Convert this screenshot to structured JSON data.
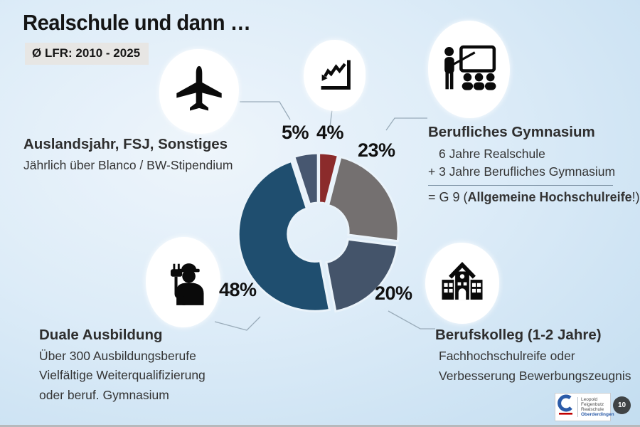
{
  "slide": {
    "title": "Realschule und dann …",
    "badge": "Ø LFR: 2010 - 2025",
    "page_number": "10"
  },
  "sections": {
    "ausland": {
      "heading": "Auslandsjahr, FSJ, Sonstiges",
      "line1": "Jährlich über Blanco / BW-Stipendium"
    },
    "gymnasium": {
      "heading": "Berufliches Gymnasium",
      "line1": "6 Jahre Realschule",
      "line2": "+ 3 Jahre Berufliches Gymnasium",
      "g9_prefix": "= G 9 (",
      "g9_bold": "Allgemeine Hochschulreife",
      "g9_suffix": "!)"
    },
    "duale": {
      "heading": "Duale Ausbildung",
      "line1": "Über 300 Ausbildungsberufe",
      "line2": "Vielfältige Weiterqualifizierung",
      "line3": "oder beruf. Gymnasium"
    },
    "berufskolleg": {
      "heading": "Berufskolleg (1-2 Jahre)",
      "line1": "Fachhochschulreife oder",
      "line2": "Verbesserung Bewerbungszeugnis"
    }
  },
  "icons": {
    "top_left": "plane-icon",
    "top_middle": "trend-chart-icon",
    "top_right": "classroom-teacher-icon",
    "bottom_left": "electrician-icon",
    "bottom_right": "school-building-icon"
  },
  "chart_data": {
    "type": "pie",
    "subtype": "exploded-donut",
    "unit": "percent",
    "total": 100,
    "start_angle_deg": 0,
    "direction": "clockwise",
    "inner_radius_ratio": 0.35,
    "legend": "none",
    "slices": [
      {
        "label": "4%",
        "value": 4,
        "color": "#8B2B2B",
        "linked_to": "trend-chart-icon"
      },
      {
        "label": "23%",
        "value": 23,
        "color": "#747070",
        "linked_to": "Berufliches Gymnasium"
      },
      {
        "label": "20%",
        "value": 20,
        "color": "#44546A",
        "linked_to": "Berufskolleg (1-2 Jahre)"
      },
      {
        "label": "48%",
        "value": 48,
        "color": "#1F4E6F",
        "linked_to": "Duale Ausbildung"
      },
      {
        "label": "5%",
        "value": 5,
        "color": "#475770",
        "linked_to": "Auslandsjahr, FSJ, Sonstiges"
      }
    ]
  },
  "logo": {
    "line1": "Leopold",
    "line2": "Feigenbutz",
    "line3": "Realschule",
    "line4": "Oberderdingen"
  },
  "colors": {
    "background_center": "#eef5fb",
    "background_edge": "#c3ddf0",
    "badge_bg": "#e7e6e4",
    "logo_blue": "#2B5BA8",
    "logo_red": "#C00000",
    "connector": "#9aacba"
  }
}
